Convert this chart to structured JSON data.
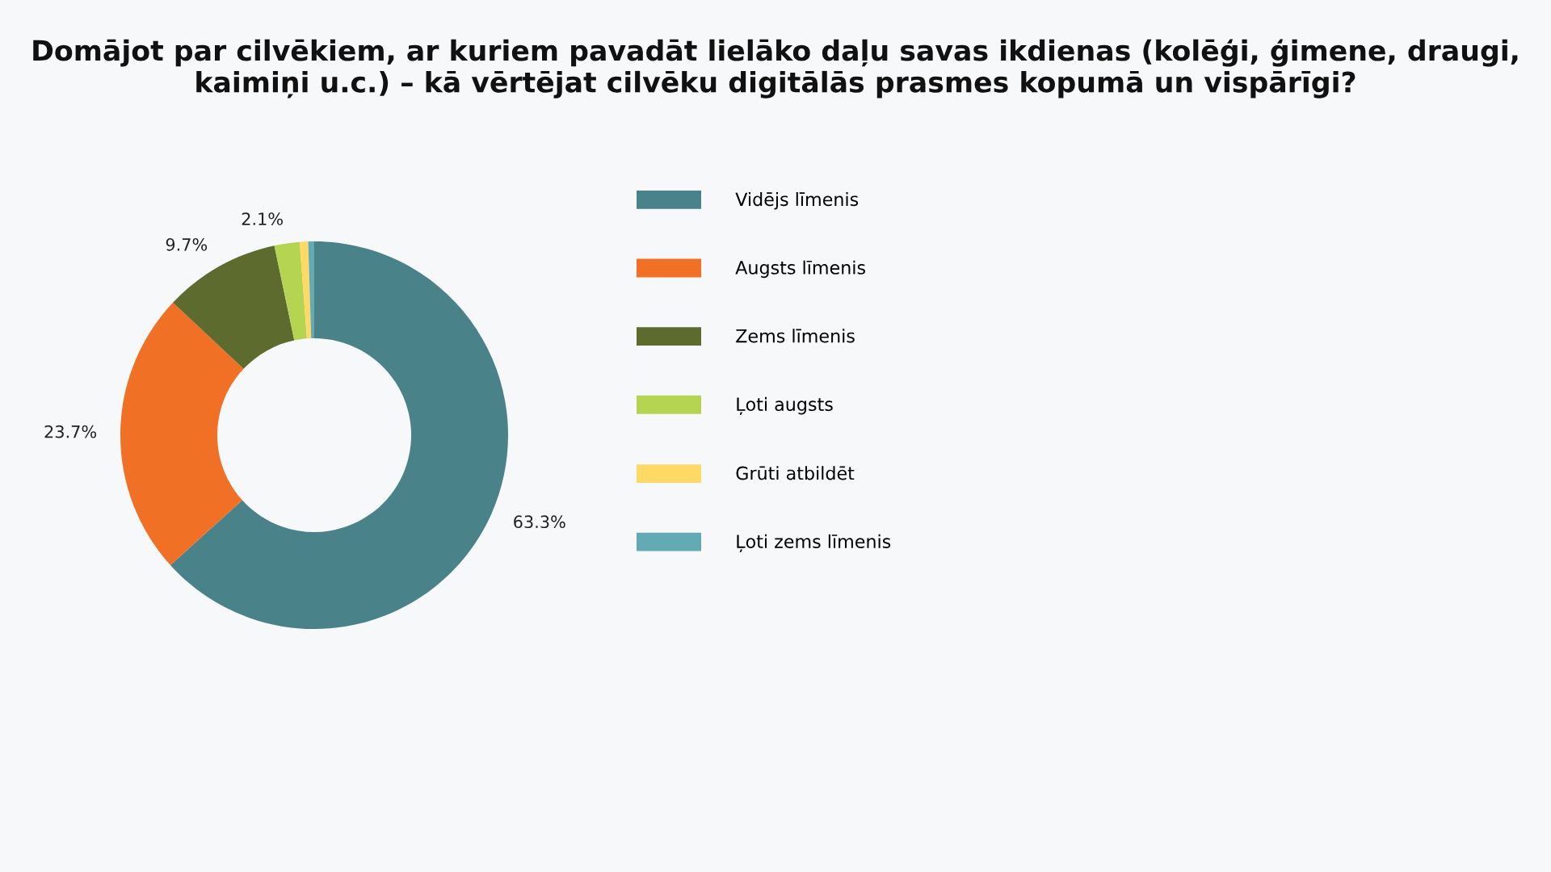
{
  "chart_data": {
    "type": "donut",
    "title": "Domājot par cilvēkiem, ar kuriem pavadāt lielāko daļu savas ikdienas (kolēģi, ģimene, draugi, kaimiņi u.c.) – kā vērtējat cilvēku digitālās prasmes kopumā un vispārīgi?",
    "categories": [
      "Vidējs līmenis",
      "Augsts līmenis",
      "Zems līmenis",
      "Ļoti augsts",
      "Grūti atbildēt",
      "Ļoti zems līmenis"
    ],
    "values": [
      63.3,
      23.7,
      9.7,
      2.1,
      0.7,
      0.5
    ],
    "colors": [
      "#4a8289",
      "#f07026",
      "#5d6b2e",
      "#b5d452",
      "#ffd966",
      "#63aab5"
    ],
    "value_labels": [
      "63.3%",
      "23.7%",
      "9.7%",
      "2.1%",
      null,
      null
    ],
    "legend": "right"
  }
}
